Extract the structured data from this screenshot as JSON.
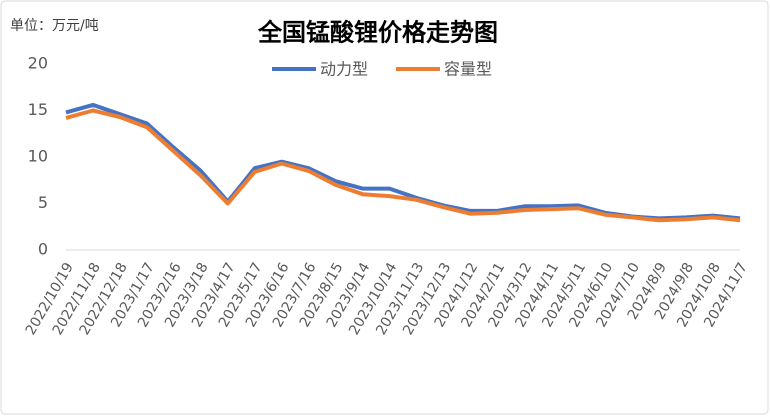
{
  "chart_data": {
    "type": "line",
    "title": "全国锰酸锂价格走势图",
    "unit_label": "单位：万元/吨",
    "categories": [
      "2022/10/19",
      "2022/11/18",
      "2022/12/18",
      "2023/1/17",
      "2023/2/16",
      "2023/3/18",
      "2023/4/17",
      "2023/5/17",
      "2023/6/16",
      "2023/7/16",
      "2023/8/15",
      "2023/9/14",
      "2023/10/14",
      "2023/11/13",
      "2023/12/13",
      "2024/1/12",
      "2024/2/11",
      "2024/3/12",
      "2024/4/11",
      "2024/5/11",
      "2024/6/10",
      "2024/7/10",
      "2024/8/9",
      "2024/9/8",
      "2024/10/8",
      "2024/11/7"
    ],
    "series": [
      {
        "name": "动力型",
        "color": "#4472c4",
        "values": [
          14.8,
          15.6,
          14.6,
          13.6,
          11,
          8.5,
          5.2,
          8.8,
          9.5,
          8.8,
          7.4,
          6.6,
          6.6,
          5.6,
          4.8,
          4.2,
          4.2,
          4.7,
          4.7,
          4.8,
          4,
          3.6,
          3.4,
          3.5,
          3.7,
          3.4
        ]
      },
      {
        "name": "容量型",
        "color": "#ed7d31",
        "values": [
          14.2,
          15,
          14.3,
          13.2,
          10.6,
          8,
          5,
          8.4,
          9.3,
          8.5,
          7,
          6,
          5.8,
          5.4,
          4.6,
          3.9,
          4,
          4.3,
          4.4,
          4.5,
          3.8,
          3.5,
          3.2,
          3.3,
          3.5,
          3.2
        ]
      }
    ],
    "ylim": [
      0,
      20
    ],
    "yticks": [
      0,
      5,
      10,
      15,
      20
    ],
    "grid": false,
    "legend": "top"
  }
}
